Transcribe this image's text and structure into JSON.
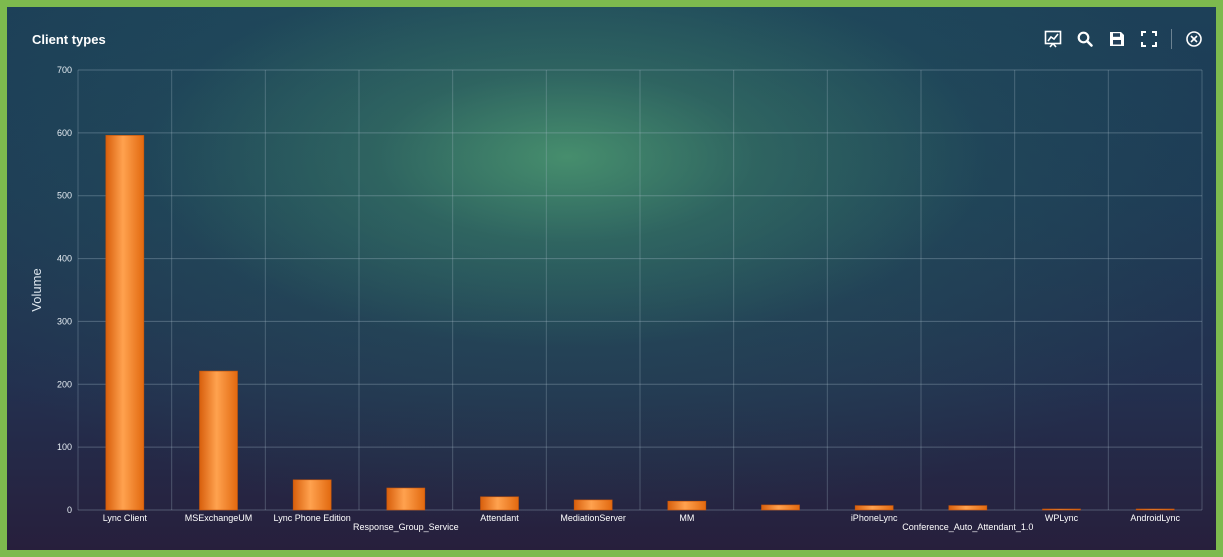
{
  "window": {
    "title": "Client types"
  },
  "toolbar": {
    "icons": [
      "chart-settings-icon",
      "search-icon",
      "save-icon",
      "fullscreen-icon",
      "close-icon"
    ]
  },
  "colors": {
    "bar": "#f47a1e",
    "bar_light": "#ffb470",
    "bar_dark": "#d85f0c",
    "grid": "#9fb4c4",
    "text": "#ffffff"
  },
  "chart_data": {
    "type": "bar",
    "title": "Client types",
    "xlabel": "",
    "ylabel": "Volume",
    "ylim": [
      0,
      700
    ],
    "yticks": [
      0,
      100,
      200,
      300,
      400,
      500,
      600,
      700
    ],
    "grid": true,
    "categories": [
      "Lync Client",
      "MSExchangeUM",
      "Lync Phone Edition",
      "Response_Group_Service",
      "Attendant",
      "MediationServer",
      "MM",
      "",
      "iPhoneLync",
      "Conference_Auto_Attendant_1.0",
      "WPLync",
      "AndroidLync"
    ],
    "values": [
      596,
      221,
      48,
      35,
      21,
      16,
      14,
      8,
      7,
      7,
      1,
      1
    ]
  }
}
